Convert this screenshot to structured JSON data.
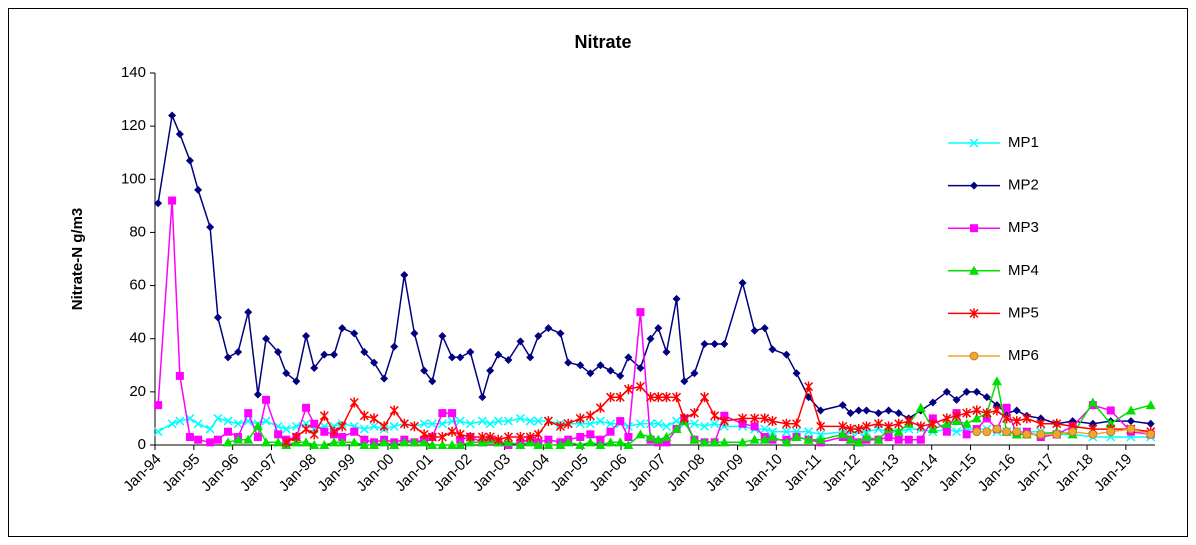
{
  "chart_data": {
    "type": "line",
    "title": "Nitrate",
    "y_label": "Nitrate-N g/m3",
    "x": [
      1994.08,
      1994.44,
      1994.64,
      1994.9,
      1995.11,
      1995.42,
      1995.62,
      1995.88,
      1996.14,
      1996.4,
      1996.65,
      1996.86,
      1997.17,
      1997.38,
      1997.64,
      1997.89,
      1998.1,
      1998.36,
      1998.61,
      1998.82,
      1999.13,
      1999.39,
      1999.64,
      1999.9,
      2000.16,
      2000.42,
      2000.68,
      2000.93,
      2001.14,
      2001.4,
      2001.65,
      2001.86,
      2002.12,
      2002.43,
      2002.63,
      2002.84,
      2003.1,
      2003.41,
      2003.66,
      2003.87,
      2004.13,
      2004.44,
      2004.64,
      2004.95,
      2005.21,
      2005.47,
      2005.73,
      2005.98,
      2006.19,
      2006.5,
      2006.76,
      2006.96,
      2007.17,
      2007.43,
      2007.63,
      2007.89,
      2008.15,
      2008.41,
      2008.66,
      2009.13,
      2009.44,
      2009.7,
      2009.9,
      2010.26,
      2010.52,
      2010.83,
      2011.14,
      2011.71,
      2011.91,
      2012.12,
      2012.32,
      2012.63,
      2012.89,
      2013.15,
      2013.41,
      2013.72,
      2014.03,
      2014.39,
      2014.64,
      2014.9,
      2015.16,
      2015.42,
      2015.68,
      2015.93,
      2016.19,
      2016.45,
      2016.81,
      2017.22,
      2017.63,
      2018.15,
      2018.61,
      2019.13,
      2019.64
    ],
    "series": [
      {
        "name": "MP1",
        "color": "#00ffff",
        "marker": "x",
        "values": [
          5,
          8,
          9,
          10,
          8,
          6,
          10,
          9,
          8,
          9,
          8,
          9,
          7,
          6,
          7,
          8,
          6,
          7,
          7,
          8,
          7,
          6,
          7,
          6,
          7,
          8,
          7,
          8,
          8,
          8,
          9,
          9,
          8,
          9,
          8,
          9,
          9,
          10,
          9,
          9,
          9,
          8,
          8,
          8,
          8,
          9,
          8,
          8,
          7,
          8,
          8,
          8,
          7,
          9,
          8,
          8,
          7,
          8,
          7,
          7,
          6,
          6,
          5,
          5,
          5,
          5,
          4,
          5,
          5,
          5,
          5,
          6,
          5,
          5,
          6,
          6,
          5,
          6,
          5,
          6,
          6,
          6,
          5,
          5,
          5,
          5,
          5,
          4,
          4,
          3,
          3,
          3,
          3
        ]
      },
      {
        "name": "MP2",
        "color": "#000080",
        "marker": "diamond",
        "values": [
          91,
          124,
          117,
          107,
          96,
          82,
          48,
          33,
          35,
          50,
          19,
          40,
          35,
          27,
          24,
          41,
          29,
          34,
          34,
          44,
          42,
          35,
          31,
          25,
          37,
          64,
          42,
          28,
          24,
          41,
          33,
          33,
          35,
          18,
          28,
          34,
          32,
          39,
          33,
          41,
          44,
          42,
          31,
          30,
          27,
          30,
          28,
          26,
          33,
          29,
          40,
          44,
          35,
          55,
          24,
          27,
          38,
          38,
          38,
          61,
          43,
          44,
          36,
          34,
          27,
          18,
          13,
          15,
          12,
          13,
          13,
          12,
          13,
          12,
          10,
          13,
          16,
          20,
          17,
          20,
          20,
          18,
          15,
          12,
          13,
          11,
          10,
          8,
          9,
          8,
          9,
          9,
          8
        ]
      },
      {
        "name": "MP3",
        "color": "#ff00ff",
        "marker": "square",
        "values": [
          15,
          92,
          26,
          3,
          2,
          1,
          2,
          5,
          3,
          12,
          3,
          17,
          4,
          2,
          3,
          14,
          8,
          5,
          4,
          3,
          5,
          2,
          1,
          2,
          1,
          2,
          1,
          2,
          3,
          12,
          12,
          2,
          3,
          1,
          2,
          1,
          0,
          1,
          2,
          1,
          2,
          1,
          2,
          3,
          4,
          2,
          5,
          9,
          3,
          50,
          2,
          1,
          1,
          6,
          10,
          2,
          1,
          1,
          11,
          8,
          7,
          3,
          2,
          2,
          3,
          2,
          1,
          3,
          2,
          1,
          2,
          2,
          3,
          2,
          2,
          2,
          10,
          5,
          12,
          4,
          6,
          10,
          6,
          14,
          4,
          5,
          3,
          4,
          7,
          15,
          13,
          5,
          4
        ]
      },
      {
        "name": "MP4",
        "color": "#00e000",
        "marker": "triangle",
        "values": [
          null,
          null,
          null,
          null,
          null,
          null,
          null,
          1,
          2,
          2,
          7,
          1,
          1,
          0,
          1,
          1,
          0,
          0,
          1,
          1,
          1,
          0,
          0,
          1,
          0,
          1,
          1,
          1,
          0,
          0,
          0,
          0,
          1,
          1,
          2,
          1,
          1,
          0,
          1,
          0,
          0,
          0,
          1,
          0,
          1,
          0,
          1,
          1,
          0,
          4,
          3,
          2,
          3,
          6,
          9,
          2,
          1,
          1,
          1,
          1,
          2,
          2,
          3,
          1,
          3,
          2,
          2,
          4,
          2,
          1,
          3,
          2,
          6,
          5,
          8,
          14,
          6,
          8,
          9,
          8,
          10,
          12,
          24,
          5,
          4,
          4,
          4,
          5,
          4,
          16,
          8,
          13,
          15
        ]
      },
      {
        "name": "MP5",
        "color": "#ff0000",
        "marker": "asterisk",
        "values": [
          null,
          null,
          null,
          null,
          null,
          null,
          null,
          null,
          null,
          null,
          null,
          null,
          null,
          1,
          3,
          6,
          4,
          11,
          5,
          7,
          16,
          11,
          10,
          7,
          13,
          8,
          7,
          4,
          3,
          3,
          5,
          4,
          3,
          3,
          3,
          2,
          3,
          3,
          3,
          4,
          9,
          7,
          8,
          10,
          11,
          14,
          18,
          18,
          21,
          22,
          18,
          18,
          18,
          18,
          10,
          12,
          18,
          11,
          9,
          10,
          10,
          10,
          9,
          8,
          8,
          22,
          7,
          7,
          6,
          6,
          7,
          8,
          7,
          8,
          9,
          7,
          8,
          10,
          11,
          12,
          13,
          12,
          13,
          10,
          9,
          10,
          8,
          8,
          7,
          6,
          6,
          6,
          5
        ]
      },
      {
        "name": "MP6",
        "color": "#f4a430",
        "marker": "circle",
        "values": [
          null,
          null,
          null,
          null,
          null,
          null,
          null,
          null,
          null,
          null,
          null,
          null,
          null,
          null,
          null,
          null,
          null,
          null,
          null,
          null,
          null,
          null,
          null,
          null,
          null,
          null,
          null,
          null,
          null,
          null,
          null,
          null,
          null,
          null,
          null,
          null,
          null,
          null,
          null,
          null,
          null,
          null,
          null,
          null,
          null,
          null,
          null,
          null,
          null,
          null,
          null,
          null,
          null,
          null,
          null,
          null,
          null,
          null,
          null,
          null,
          null,
          null,
          null,
          null,
          null,
          null,
          null,
          null,
          null,
          null,
          null,
          null,
          null,
          null,
          null,
          null,
          null,
          null,
          null,
          null,
          5,
          5,
          6,
          5,
          5,
          4,
          4,
          4,
          5,
          4,
          5,
          6,
          4
        ]
      }
    ],
    "xlim": [
      1994,
      2019.75
    ],
    "xticks": [
      {
        "value": 1994,
        "label": "Jan-94"
      },
      {
        "value": 1995,
        "label": "Jan-95"
      },
      {
        "value": 1996,
        "label": "Jan-96"
      },
      {
        "value": 1997,
        "label": "Jan-97"
      },
      {
        "value": 1998,
        "label": "Jan-98"
      },
      {
        "value": 1999,
        "label": "Jan-99"
      },
      {
        "value": 2000,
        "label": "Jan-00"
      },
      {
        "value": 2001,
        "label": "Jan-01"
      },
      {
        "value": 2002,
        "label": "Jan-02"
      },
      {
        "value": 2003,
        "label": "Jan-03"
      },
      {
        "value": 2004,
        "label": "Jan-04"
      },
      {
        "value": 2005,
        "label": "Jan-05"
      },
      {
        "value": 2006,
        "label": "Jan-06"
      },
      {
        "value": 2007,
        "label": "Jan-07"
      },
      {
        "value": 2008,
        "label": "Jan-08"
      },
      {
        "value": 2009,
        "label": "Jan-09"
      },
      {
        "value": 2010,
        "label": "Jan-10"
      },
      {
        "value": 2011,
        "label": "Jan-11"
      },
      {
        "value": 2012,
        "label": "Jan-12"
      },
      {
        "value": 2013,
        "label": "Jan-13"
      },
      {
        "value": 2014,
        "label": "Jan-14"
      },
      {
        "value": 2015,
        "label": "Jan-15"
      },
      {
        "value": 2016,
        "label": "Jan-16"
      },
      {
        "value": 2017,
        "label": "Jan-17"
      },
      {
        "value": 2018,
        "label": "Jan-18"
      },
      {
        "value": 2019,
        "label": "Jan-19"
      }
    ],
    "ylim": [
      0,
      140
    ],
    "yticks": [
      0,
      20,
      40,
      60,
      80,
      100,
      120,
      140
    ],
    "legend": "right"
  }
}
